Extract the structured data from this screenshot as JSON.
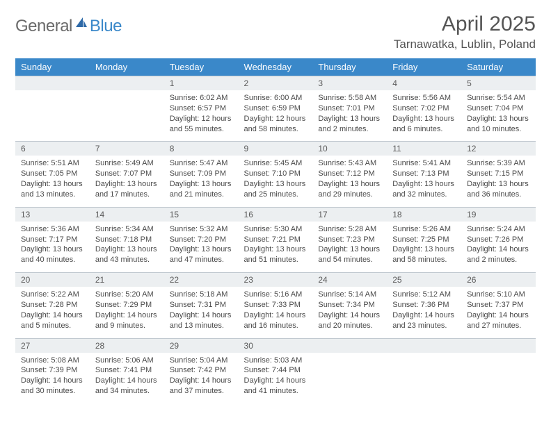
{
  "logo": {
    "text1": "General",
    "text2": "Blue"
  },
  "header": {
    "title": "April 2025",
    "location": "Tarnawatka, Lublin, Poland"
  },
  "styling": {
    "header_bg": "#3a88c9",
    "header_text": "#ffffff",
    "daynum_bg": "#eceff1",
    "border_color": "#c0c8cf",
    "text_color": "#4a4a4a",
    "title_fontsize": 30,
    "location_fontsize": 17,
    "dayheader_fontsize": 13,
    "daynum_fontsize": 12,
    "details_fontsize": 11
  },
  "dayHeaders": [
    "Sunday",
    "Monday",
    "Tuesday",
    "Wednesday",
    "Thursday",
    "Friday",
    "Saturday"
  ],
  "weeks": [
    {
      "nums": [
        "",
        "",
        "1",
        "2",
        "3",
        "4",
        "5"
      ],
      "details": [
        "",
        "",
        "Sunrise: 6:02 AM\nSunset: 6:57 PM\nDaylight: 12 hours and 55 minutes.",
        "Sunrise: 6:00 AM\nSunset: 6:59 PM\nDaylight: 12 hours and 58 minutes.",
        "Sunrise: 5:58 AM\nSunset: 7:01 PM\nDaylight: 13 hours and 2 minutes.",
        "Sunrise: 5:56 AM\nSunset: 7:02 PM\nDaylight: 13 hours and 6 minutes.",
        "Sunrise: 5:54 AM\nSunset: 7:04 PM\nDaylight: 13 hours and 10 minutes."
      ]
    },
    {
      "nums": [
        "6",
        "7",
        "8",
        "9",
        "10",
        "11",
        "12"
      ],
      "details": [
        "Sunrise: 5:51 AM\nSunset: 7:05 PM\nDaylight: 13 hours and 13 minutes.",
        "Sunrise: 5:49 AM\nSunset: 7:07 PM\nDaylight: 13 hours and 17 minutes.",
        "Sunrise: 5:47 AM\nSunset: 7:09 PM\nDaylight: 13 hours and 21 minutes.",
        "Sunrise: 5:45 AM\nSunset: 7:10 PM\nDaylight: 13 hours and 25 minutes.",
        "Sunrise: 5:43 AM\nSunset: 7:12 PM\nDaylight: 13 hours and 29 minutes.",
        "Sunrise: 5:41 AM\nSunset: 7:13 PM\nDaylight: 13 hours and 32 minutes.",
        "Sunrise: 5:39 AM\nSunset: 7:15 PM\nDaylight: 13 hours and 36 minutes."
      ]
    },
    {
      "nums": [
        "13",
        "14",
        "15",
        "16",
        "17",
        "18",
        "19"
      ],
      "details": [
        "Sunrise: 5:36 AM\nSunset: 7:17 PM\nDaylight: 13 hours and 40 minutes.",
        "Sunrise: 5:34 AM\nSunset: 7:18 PM\nDaylight: 13 hours and 43 minutes.",
        "Sunrise: 5:32 AM\nSunset: 7:20 PM\nDaylight: 13 hours and 47 minutes.",
        "Sunrise: 5:30 AM\nSunset: 7:21 PM\nDaylight: 13 hours and 51 minutes.",
        "Sunrise: 5:28 AM\nSunset: 7:23 PM\nDaylight: 13 hours and 54 minutes.",
        "Sunrise: 5:26 AM\nSunset: 7:25 PM\nDaylight: 13 hours and 58 minutes.",
        "Sunrise: 5:24 AM\nSunset: 7:26 PM\nDaylight: 14 hours and 2 minutes."
      ]
    },
    {
      "nums": [
        "20",
        "21",
        "22",
        "23",
        "24",
        "25",
        "26"
      ],
      "details": [
        "Sunrise: 5:22 AM\nSunset: 7:28 PM\nDaylight: 14 hours and 5 minutes.",
        "Sunrise: 5:20 AM\nSunset: 7:29 PM\nDaylight: 14 hours and 9 minutes.",
        "Sunrise: 5:18 AM\nSunset: 7:31 PM\nDaylight: 14 hours and 13 minutes.",
        "Sunrise: 5:16 AM\nSunset: 7:33 PM\nDaylight: 14 hours and 16 minutes.",
        "Sunrise: 5:14 AM\nSunset: 7:34 PM\nDaylight: 14 hours and 20 minutes.",
        "Sunrise: 5:12 AM\nSunset: 7:36 PM\nDaylight: 14 hours and 23 minutes.",
        "Sunrise: 5:10 AM\nSunset: 7:37 PM\nDaylight: 14 hours and 27 minutes."
      ]
    },
    {
      "nums": [
        "27",
        "28",
        "29",
        "30",
        "",
        "",
        ""
      ],
      "details": [
        "Sunrise: 5:08 AM\nSunset: 7:39 PM\nDaylight: 14 hours and 30 minutes.",
        "Sunrise: 5:06 AM\nSunset: 7:41 PM\nDaylight: 14 hours and 34 minutes.",
        "Sunrise: 5:04 AM\nSunset: 7:42 PM\nDaylight: 14 hours and 37 minutes.",
        "Sunrise: 5:03 AM\nSunset: 7:44 PM\nDaylight: 14 hours and 41 minutes.",
        "",
        "",
        ""
      ]
    }
  ]
}
